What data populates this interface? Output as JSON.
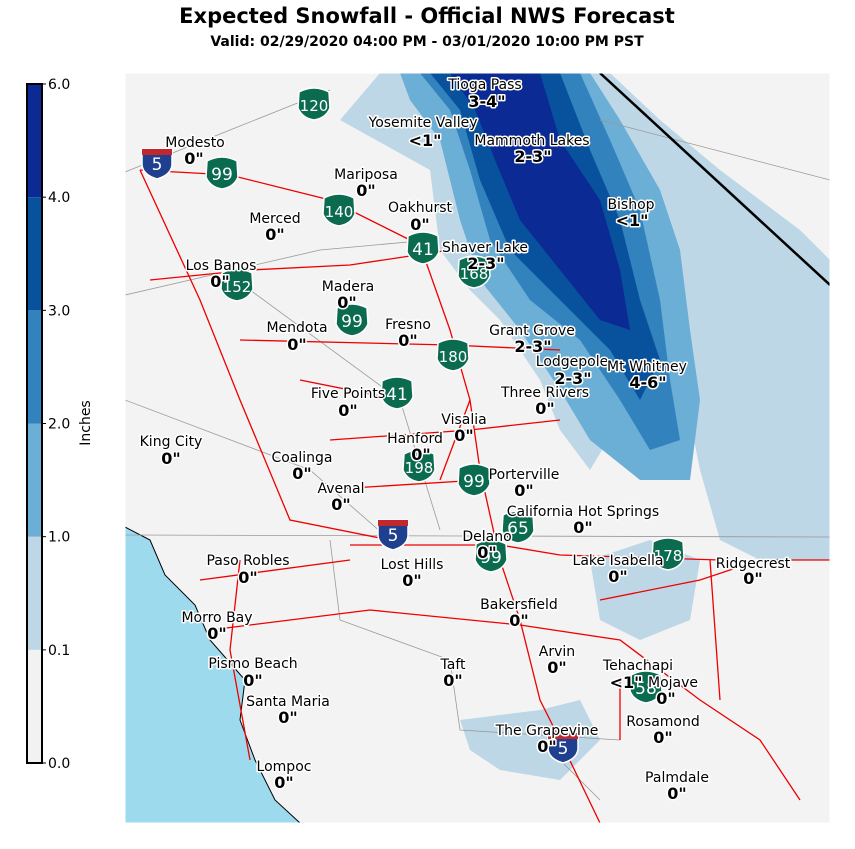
{
  "header": {
    "title": "Expected Snowfall - Official NWS Forecast",
    "subtitle": "Valid: 02/29/2020 04:00 PM - 03/01/2020 10:00 PM PST"
  },
  "colorbar": {
    "label": "Inches",
    "ticks": [
      {
        "value": 0,
        "label": "0.0"
      },
      {
        "value": 0.1,
        "label": "0.1"
      },
      {
        "value": 1,
        "label": "1.0"
      },
      {
        "value": 2,
        "label": "2.0"
      },
      {
        "value": 3,
        "label": "3.0"
      },
      {
        "value": 4,
        "label": "4.0"
      },
      {
        "value": 6,
        "label": "6.0"
      }
    ],
    "colors": [
      "#f2f2f2",
      "#bdd7e7",
      "#6baed6",
      "#3182bd",
      "#08519c",
      "#0c2a94"
    ]
  },
  "places": [
    {
      "name": "Tioga Pass",
      "amount": "3-4\""
    },
    {
      "name": "Yosemite Valley",
      "amount": "<1\""
    },
    {
      "name": "Mammoth Lakes",
      "amount": "2-3\""
    },
    {
      "name": "Modesto",
      "amount": "0\""
    },
    {
      "name": "Mariposa",
      "amount": "0\""
    },
    {
      "name": "Oakhurst",
      "amount": "0\""
    },
    {
      "name": "Bishop",
      "amount": "<1\""
    },
    {
      "name": "Merced",
      "amount": "0\""
    },
    {
      "name": "Shaver Lake",
      "amount": "2-3\""
    },
    {
      "name": "Los Banos",
      "amount": "0\""
    },
    {
      "name": "Madera",
      "amount": "0\""
    },
    {
      "name": "Mendota",
      "amount": "0\""
    },
    {
      "name": "Fresno",
      "amount": "0\""
    },
    {
      "name": "Grant Grove",
      "amount": "2-3\""
    },
    {
      "name": "Lodgepole",
      "amount": "2-3\""
    },
    {
      "name": "Mt Whitney",
      "amount": "4-6\""
    },
    {
      "name": "Five Points",
      "amount": "0\""
    },
    {
      "name": "Three Rivers",
      "amount": "0\""
    },
    {
      "name": "King City",
      "amount": "0\""
    },
    {
      "name": "Hanford",
      "amount": "0\""
    },
    {
      "name": "Visalia",
      "amount": "0\""
    },
    {
      "name": "Coalinga",
      "amount": "0\""
    },
    {
      "name": "Porterville",
      "amount": "0\""
    },
    {
      "name": "Avenal",
      "amount": "0\""
    },
    {
      "name": "California Hot Springs",
      "amount": "0\""
    },
    {
      "name": "Delano",
      "amount": "0\""
    },
    {
      "name": "Paso Robles",
      "amount": "0\""
    },
    {
      "name": "Lost Hills",
      "amount": "0\""
    },
    {
      "name": "Lake Isabella",
      "amount": "0\""
    },
    {
      "name": "Ridgecrest",
      "amount": "0\""
    },
    {
      "name": "Bakersfield",
      "amount": "0\""
    },
    {
      "name": "Morro Bay",
      "amount": "0\""
    },
    {
      "name": "Arvin",
      "amount": "0\""
    },
    {
      "name": "Pismo Beach",
      "amount": "0\""
    },
    {
      "name": "Taft",
      "amount": "0\""
    },
    {
      "name": "Tehachapi",
      "amount": "<1\""
    },
    {
      "name": "Mojave",
      "amount": "0\""
    },
    {
      "name": "Santa Maria",
      "amount": "0\""
    },
    {
      "name": "Rosamond",
      "amount": "0\""
    },
    {
      "name": "The Grapevine",
      "amount": "0\""
    },
    {
      "name": "Lompoc",
      "amount": "0\""
    },
    {
      "name": "Palmdale",
      "amount": "0\""
    }
  ],
  "highways": [
    {
      "number": "120",
      "kind": "state"
    },
    {
      "number": "5",
      "kind": "interstate"
    },
    {
      "number": "99",
      "kind": "state"
    },
    {
      "number": "140",
      "kind": "state"
    },
    {
      "number": "41",
      "kind": "state"
    },
    {
      "number": "168",
      "kind": "state"
    },
    {
      "number": "152",
      "kind": "state"
    },
    {
      "number": "99",
      "kind": "state"
    },
    {
      "number": "180",
      "kind": "state"
    },
    {
      "number": "41",
      "kind": "state"
    },
    {
      "number": "198",
      "kind": "state"
    },
    {
      "number": "99",
      "kind": "state"
    },
    {
      "number": "5",
      "kind": "interstate"
    },
    {
      "number": "65",
      "kind": "state"
    },
    {
      "number": "99",
      "kind": "state"
    },
    {
      "number": "178",
      "kind": "state"
    },
    {
      "number": "58",
      "kind": "state"
    },
    {
      "number": "5",
      "kind": "interstate"
    }
  ]
}
